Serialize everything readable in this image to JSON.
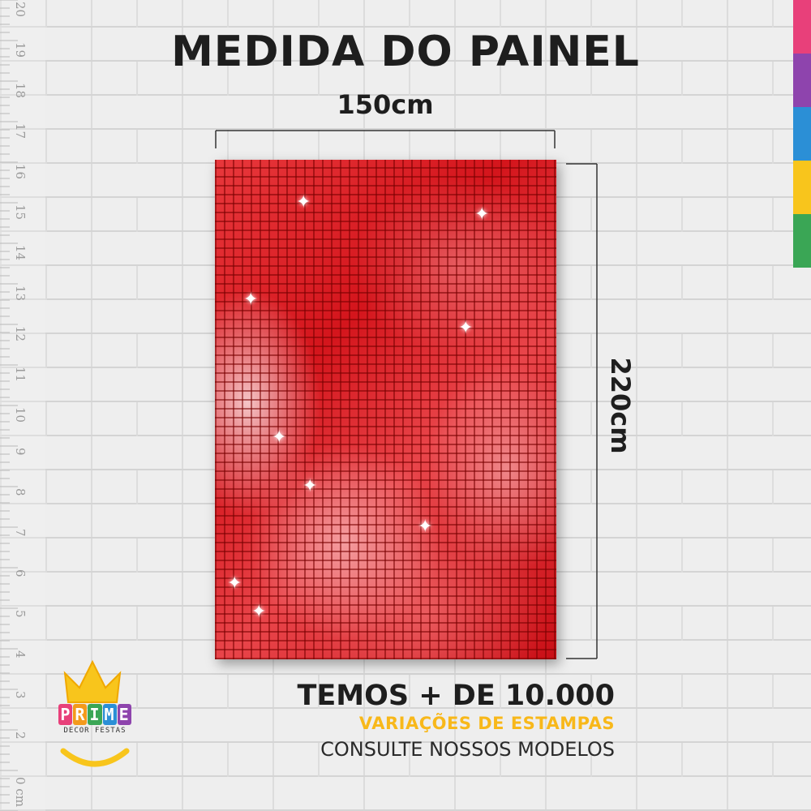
{
  "title": "MEDIDA DO PAINEL",
  "dimensions": {
    "width_label": "150cm",
    "height_label": "220cm"
  },
  "panel": {
    "pattern": "red sequin mosaic",
    "base_color": "#d4151c"
  },
  "promo": {
    "line1": "TEMOS + DE 10.000",
    "line2": "VARIAÇÕES DE ESTAMPAS",
    "line3": "CONSULTE NOSSOS MODELOS",
    "accent_color": "#f8b81a"
  },
  "logo": {
    "letters": [
      "P",
      "R",
      "I",
      "M",
      "E"
    ],
    "letter_colors": [
      "#e8407a",
      "#f39a1c",
      "#3aa655",
      "#2b8fd6",
      "#8e44ad"
    ],
    "subtitle": "DECOR FESTAS",
    "crown_color": "#f8c51c",
    "icon": "crown-icon"
  },
  "ruler": {
    "numbers": [
      "20",
      "19",
      "18",
      "17",
      "16",
      "15",
      "14",
      "13",
      "12",
      "11",
      "10",
      "9",
      "8",
      "7",
      "6",
      "5",
      "4",
      "3",
      "2",
      "0 cm"
    ]
  },
  "color_strip": [
    "#e8407a",
    "#8e44ad",
    "#2b8fd6",
    "#f8c51c",
    "#3aa655"
  ]
}
